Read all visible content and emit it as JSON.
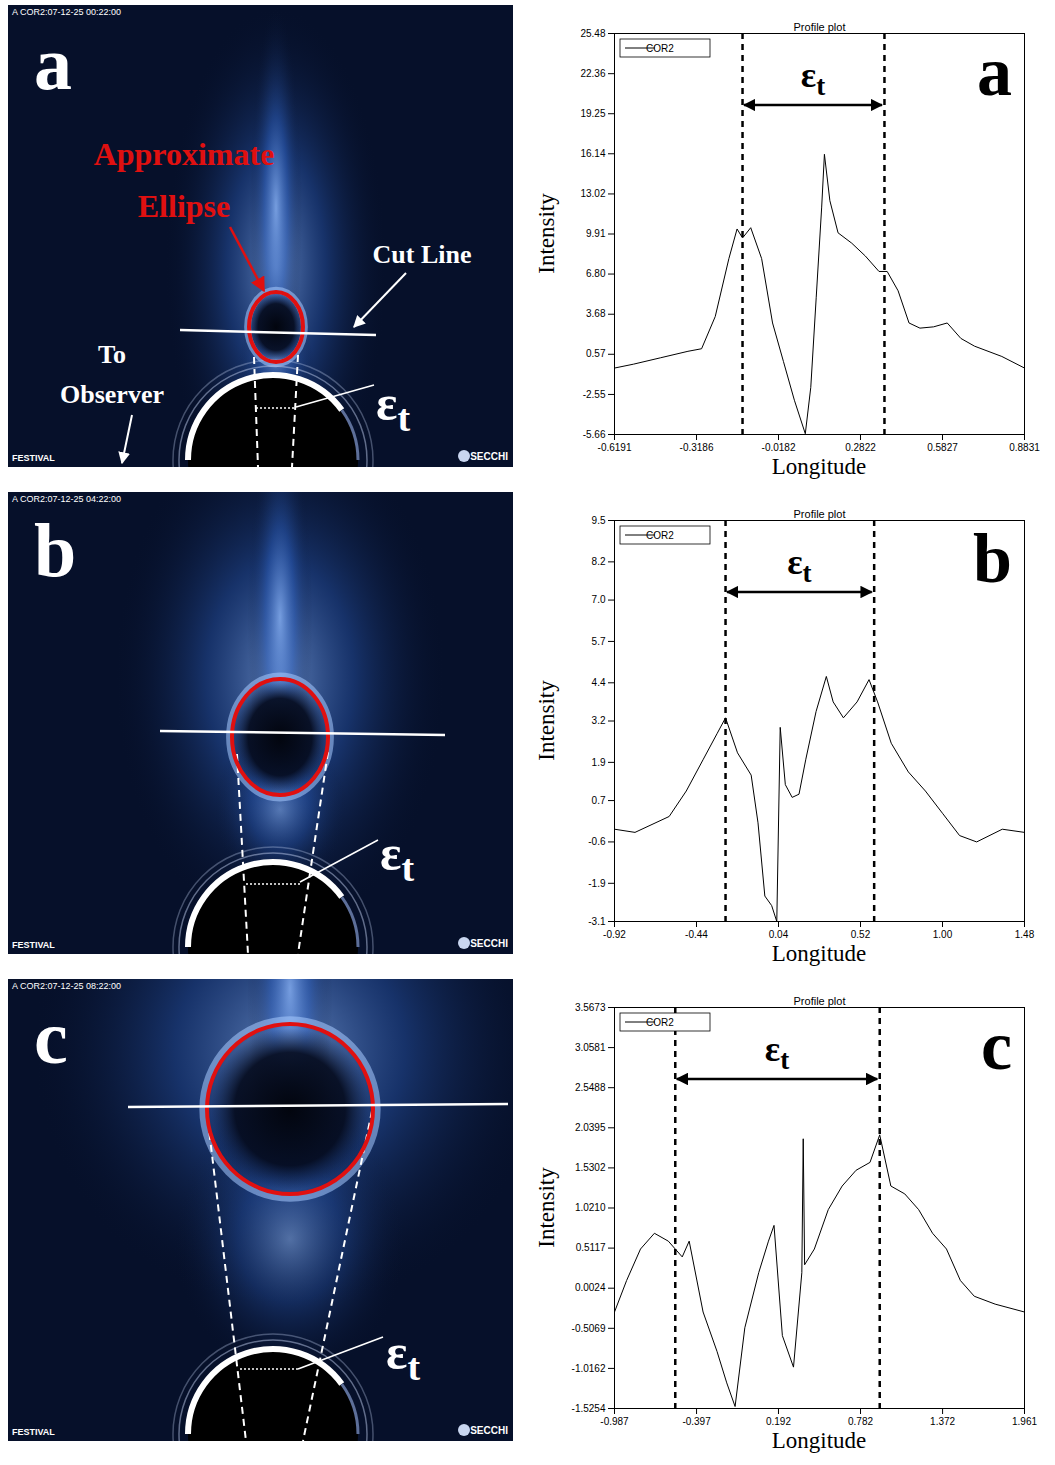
{
  "images": [
    {
      "panel": "a",
      "header": "A COR2:07-12-25 00:22:00",
      "footer_left": "FESTIVAL",
      "footer_right": "SECCHI",
      "epsilon_label": "εt",
      "labels": {
        "ellipse": "Approximate Ellipse",
        "cut_line": "Cut Line",
        "observer": "To Observer"
      }
    },
    {
      "panel": "b",
      "header": "A COR2:07-12-25 04:22:00",
      "footer_left": "FESTIVAL",
      "footer_right": "SECCHI",
      "epsilon_label": "εt"
    },
    {
      "panel": "c",
      "header": "A COR2:07-12-25 08:22:00",
      "footer_left": "FESTIVAL",
      "footer_right": "SECCHI",
      "epsilon_label": "εt"
    }
  ],
  "chart_data": [
    {
      "type": "line",
      "panel": "a",
      "title": "Profile plot",
      "x_label": "Longitude",
      "y_label": "Intensity",
      "legend": "top-left",
      "grid": false,
      "x": [
        -0.6191,
        -0.55,
        -0.45,
        -0.35,
        -0.3,
        -0.25,
        -0.2,
        -0.17,
        -0.15,
        -0.12,
        -0.08,
        -0.04,
        0.0,
        0.04,
        0.08,
        0.1,
        0.12,
        0.14,
        0.15,
        0.17,
        0.2,
        0.25,
        0.3,
        0.35,
        0.38,
        0.42,
        0.46,
        0.5,
        0.55,
        0.6,
        0.65,
        0.7,
        0.8,
        0.8831
      ],
      "series": [
        {
          "name": "COR2",
          "color": "#000000",
          "values": [
            -0.5,
            -0.2,
            0.3,
            0.8,
            1.0,
            3.5,
            8.0,
            10.3,
            9.6,
            10.4,
            8.0,
            3.0,
            0.0,
            -3.0,
            -5.6,
            -2.0,
            5.0,
            12.0,
            16.1,
            12.5,
            10.0,
            9.2,
            8.2,
            7.0,
            7.0,
            5.5,
            3.0,
            2.6,
            2.7,
            3.0,
            1.8,
            1.2,
            0.4,
            -0.5
          ]
        }
      ],
      "epsilon_t": {
        "label": "εt",
        "x": [
          -0.15,
          0.37
        ]
      },
      "xlim": [
        -0.6191,
        0.8831
      ],
      "xticks": [
        -0.6191,
        -0.3186,
        -0.0182,
        0.2822,
        0.5827,
        0.8831
      ],
      "ylim": [
        -5.66,
        25.48
      ],
      "yticks": [
        -5.66,
        -2.55,
        0.57,
        3.68,
        {
          "value": 6.8,
          "label": "6.80"
        },
        9.91,
        13.02,
        16.14,
        19.25,
        22.36,
        25.48
      ]
    },
    {
      "type": "line",
      "panel": "b",
      "title": "Profile plot",
      "x_label": "Longitude",
      "y_label": "Intensity",
      "legend": "top-left",
      "grid": false,
      "x": [
        -0.92,
        -0.8,
        -0.6,
        -0.5,
        -0.4,
        -0.32,
        -0.27,
        -0.2,
        -0.12,
        -0.08,
        -0.04,
        0.0,
        0.03,
        0.05,
        0.08,
        0.12,
        0.16,
        0.2,
        0.26,
        0.32,
        0.36,
        0.42,
        0.5,
        0.57,
        0.62,
        0.7,
        0.8,
        0.9,
        1.0,
        1.1,
        1.2,
        1.35,
        1.48
      ],
      "series": [
        {
          "name": "COR2",
          "color": "#000000",
          "values": [
            -0.2,
            -0.3,
            0.2,
            1.0,
            2.0,
            2.8,
            3.3,
            2.2,
            1.5,
            0.0,
            -2.3,
            -2.6,
            -3.1,
            3.0,
            1.2,
            0.8,
            0.9,
            2.0,
            3.5,
            4.6,
            3.8,
            3.3,
            3.8,
            4.5,
            3.8,
            2.5,
            1.6,
            1.0,
            0.3,
            -0.4,
            -0.6,
            -0.2,
            -0.3
          ]
        }
      ],
      "epsilon_t": {
        "label": "εt",
        "x": [
          -0.27,
          0.6
        ]
      },
      "xlim": [
        -0.92,
        1.48
      ],
      "xticks": [
        -0.92,
        -0.44,
        0.04,
        0.52,
        {
          "value": 1.0,
          "label": "1.00"
        },
        1.48
      ],
      "ylim": [
        -3.1,
        9.5
      ],
      "yticks": [
        -3.1,
        -1.9,
        -0.6,
        0.7,
        1.9,
        3.2,
        4.4,
        5.7,
        {
          "value": 7.0,
          "label": "7.0"
        },
        8.2,
        9.5
      ]
    },
    {
      "type": "line",
      "panel": "c",
      "title": "Profile plot",
      "x_label": "Longitude",
      "y_label": "Intensity",
      "legend": "top-left",
      "grid": false,
      "x": [
        -0.987,
        -0.9,
        -0.8,
        -0.7,
        -0.6,
        -0.5,
        -0.45,
        -0.35,
        -0.25,
        -0.18,
        -0.12,
        -0.05,
        0.05,
        0.12,
        0.16,
        0.22,
        0.3,
        0.36,
        0.37,
        0.38,
        0.45,
        0.55,
        0.65,
        0.75,
        0.85,
        0.92,
        1.0,
        1.1,
        1.2,
        1.3,
        1.4,
        1.5,
        1.6,
        1.75,
        1.961
      ],
      "series": [
        {
          "name": "COR2",
          "color": "#000000",
          "values": [
            -0.3,
            0.1,
            0.5,
            0.7,
            0.6,
            0.4,
            0.6,
            -0.3,
            -0.8,
            -1.2,
            -1.5,
            -0.5,
            0.2,
            0.6,
            0.8,
            -0.6,
            -1.0,
            0.2,
            1.9,
            0.3,
            0.5,
            1.0,
            1.3,
            1.5,
            1.6,
            1.95,
            1.3,
            1.2,
            1.0,
            0.7,
            0.5,
            0.1,
            -0.1,
            -0.2,
            -0.3
          ]
        }
      ],
      "epsilon_t": {
        "label": "εt",
        "x": [
          -0.55,
          0.92
        ]
      },
      "xlim": [
        -0.987,
        1.961
      ],
      "xticks": [
        -0.987,
        -0.397,
        0.192,
        0.782,
        1.372,
        1.961
      ],
      "ylim": [
        -1.5254,
        3.5673
      ],
      "yticks": [
        -1.5254,
        -1.0162,
        -0.5069,
        0.0024,
        0.5117,
        {
          "value": 1.021,
          "label": "1.0210"
        },
        1.5302,
        2.0395,
        2.5488,
        3.0581,
        3.5673
      ]
    }
  ]
}
